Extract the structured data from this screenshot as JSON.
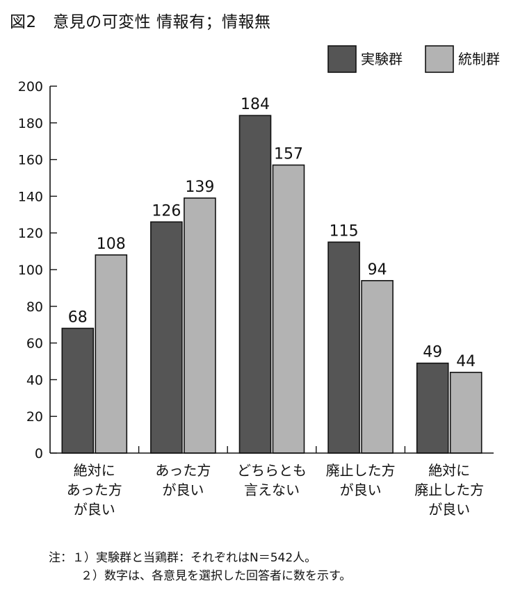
{
  "figure_title": "図2　意見の可変性 情報有；情報無",
  "notes": {
    "line1": "注：１）実験群と当鶏群：それぞれはN＝542人。",
    "line2": "２）数字は、各意見を選択した回答者に数を示す。"
  },
  "chart_data": {
    "type": "bar",
    "title": "",
    "xlabel": "",
    "ylabel": "",
    "ylim": [
      0,
      200
    ],
    "yticks": [
      0,
      20,
      40,
      60,
      80,
      100,
      120,
      140,
      160,
      180,
      200
    ],
    "grid": false,
    "legend_position": "top-right",
    "categories": [
      [
        "絶対に",
        "あった方",
        "が良い"
      ],
      [
        "あった方",
        "が良い"
      ],
      [
        "どちらとも",
        "言えない"
      ],
      [
        "廃止した方",
        "が良い"
      ],
      [
        "絶対に",
        "廃止した方",
        "が良い"
      ]
    ],
    "series": [
      {
        "name": "実験群",
        "color": "#555555",
        "values": [
          68,
          126,
          184,
          115,
          49
        ]
      },
      {
        "name": "統制群",
        "color": "#b3b3b3",
        "values": [
          108,
          139,
          157,
          94,
          44
        ]
      }
    ]
  }
}
